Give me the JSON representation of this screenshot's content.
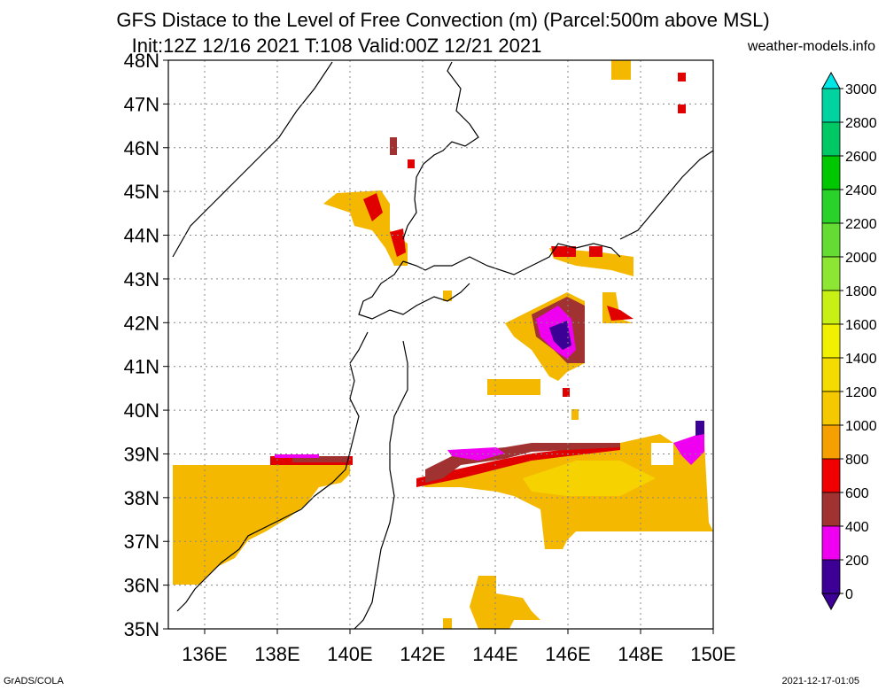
{
  "header": {
    "title_line1": "GFS Distace to the Level of Free Convection (m) (Parcel:500m above MSL)",
    "title_line2": "Init:12Z 12/16 2021 T:108 Valid:00Z 12/21 2021",
    "site": "weather-models.info"
  },
  "map": {
    "lat_labels": [
      "48N",
      "47N",
      "46N",
      "45N",
      "44N",
      "43N",
      "42N",
      "41N",
      "40N",
      "39N",
      "38N",
      "37N",
      "36N",
      "35N"
    ],
    "lon_labels": [
      "136E",
      "138E",
      "140E",
      "142E",
      "144E",
      "146E",
      "148E",
      "150E"
    ],
    "lat_range": [
      35,
      48
    ],
    "lon_range": [
      135,
      150
    ],
    "region": "Northern Japan / Hokkaido / Sakhalin"
  },
  "colorbar": {
    "labels": [
      "3000",
      "2800",
      "2600",
      "2400",
      "2200",
      "2000",
      "1800",
      "1600",
      "1400",
      "1200",
      "1000",
      "800",
      "600",
      "400",
      "200",
      "0"
    ],
    "colors": [
      "#00e6e6",
      "#00d2a0",
      "#00c864",
      "#00c800",
      "#28d228",
      "#64dc32",
      "#8ce632",
      "#c8f014",
      "#f0f000",
      "#f5dc00",
      "#f5c800",
      "#f5a000",
      "#f00000",
      "#a03232",
      "#f000f0",
      "#3c0096"
    ]
  },
  "footer": {
    "left": "GrADS/COLA",
    "right": "2021-12-17-01:05"
  }
}
